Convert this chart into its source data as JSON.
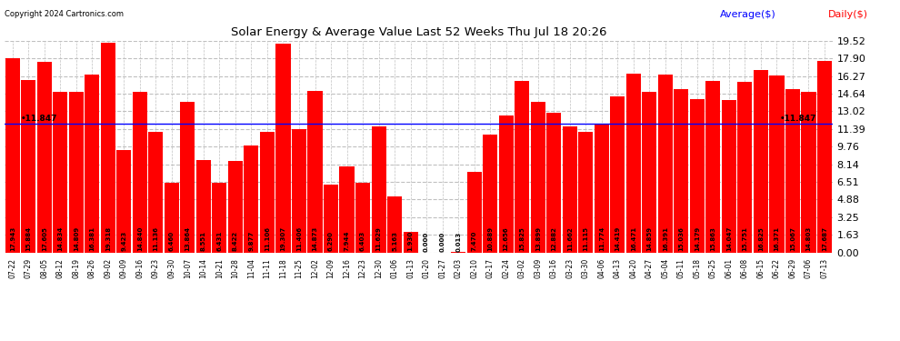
{
  "title": "Solar Energy & Average Value Last 52 Weeks Thu Jul 18 20:26",
  "copyright": "Copyright 2024 Cartronics.com",
  "average_label": "Average($)",
  "daily_label": "Daily($)",
  "average_value": 11.847,
  "bar_color": "#ff0000",
  "average_line_color": "#0000ff",
  "background_color": "#ffffff",
  "grid_color": "#c0c0c0",
  "ylim": [
    0,
    19.52
  ],
  "yticks": [
    0.0,
    1.63,
    3.25,
    4.88,
    6.51,
    8.14,
    9.76,
    11.39,
    13.02,
    14.64,
    16.27,
    17.9,
    19.52
  ],
  "categories": [
    "07-22",
    "07-29",
    "08-05",
    "08-12",
    "08-19",
    "08-26",
    "09-02",
    "09-09",
    "09-16",
    "09-23",
    "09-30",
    "10-07",
    "10-14",
    "10-21",
    "10-28",
    "11-04",
    "11-11",
    "11-18",
    "11-25",
    "12-02",
    "12-09",
    "12-16",
    "12-23",
    "12-30",
    "01-06",
    "01-13",
    "01-20",
    "01-27",
    "02-03",
    "02-10",
    "02-17",
    "02-24",
    "03-02",
    "03-09",
    "03-16",
    "03-23",
    "03-30",
    "04-06",
    "04-13",
    "04-20",
    "04-27",
    "05-04",
    "05-11",
    "05-18",
    "05-25",
    "06-01",
    "06-08",
    "06-15",
    "06-22",
    "06-29",
    "07-06",
    "07-13"
  ],
  "values": [
    17.943,
    15.884,
    17.605,
    14.834,
    14.809,
    16.381,
    19.318,
    9.423,
    14.84,
    11.136,
    6.46,
    13.864,
    8.551,
    6.431,
    8.422,
    9.877,
    11.106,
    19.307,
    11.406,
    14.873,
    6.29,
    7.944,
    6.403,
    11.629,
    5.163,
    1.93,
    0.0,
    0.0,
    0.013,
    7.47,
    10.889,
    12.656,
    15.825,
    13.899,
    12.882,
    11.662,
    11.115,
    11.774,
    14.419,
    16.471,
    14.859,
    16.391,
    15.036,
    14.179,
    15.863,
    14.047,
    15.751,
    16.825,
    16.371,
    15.067,
    14.803,
    17.687
  ],
  "value_annotations": [
    "17.943",
    "15.884",
    "17.605",
    "14.834",
    "14.809",
    "16.381",
    "19.318",
    "9.423",
    "14.840",
    "11.136",
    "6.460",
    "13.864",
    "8.551",
    "6.431",
    "8.422",
    "9.877",
    "11.106",
    "19.307",
    "11.406",
    "14.873",
    "6.290",
    "7.944",
    "6.403",
    "11.629",
    "5.163",
    "1.930",
    "0.000",
    "0.000",
    "0.013",
    "7.470",
    "10.889",
    "12.656",
    "15.825",
    "13.899",
    "12.882",
    "11.662",
    "11.115",
    "11.774",
    "14.419",
    "16.471",
    "14.859",
    "16.391",
    "15.036",
    "14.179",
    "15.863",
    "14.047",
    "15.751",
    "16.825",
    "16.371",
    "15.067",
    "14.803",
    "17.687"
  ]
}
